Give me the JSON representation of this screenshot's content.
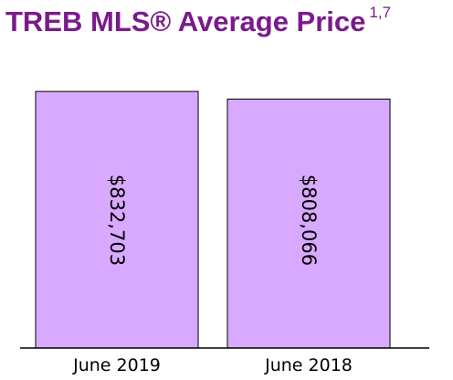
{
  "chart_data": {
    "type": "bar",
    "title": "TREB MLS® Average Price",
    "title_footnote": "1,7",
    "categories": [
      "June 2019",
      "June 2018"
    ],
    "values": [
      832703,
      808066
    ],
    "data_labels": [
      "$832,703",
      "$808,066"
    ],
    "ylim": [
      0,
      845000
    ],
    "grid": false,
    "legend": "none",
    "bar_color": "#d8aaff",
    "title_color": "#7b1a8c"
  }
}
